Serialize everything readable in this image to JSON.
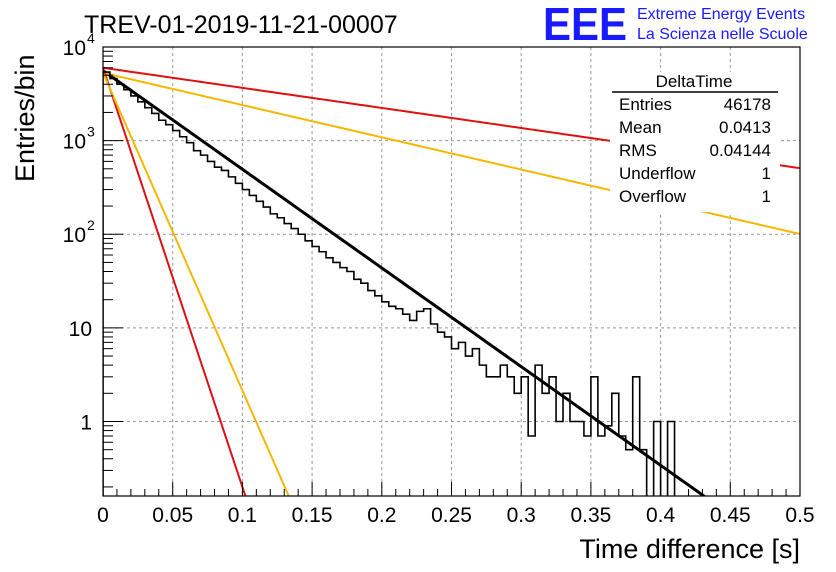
{
  "header": {
    "run_title": "TREV-01-2019-11-21-00007",
    "logo_text": "EEE",
    "logo_line1": "Extreme Energy Events",
    "logo_line2": "La Scienza nelle Scuole"
  },
  "stats": {
    "title": "DeltaTime",
    "rows": [
      {
        "label": "Entries",
        "value": "46178"
      },
      {
        "label": "Mean",
        "value": "0.0413"
      },
      {
        "label": "RMS",
        "value": "0.04144"
      },
      {
        "label": "Underflow",
        "value": "1"
      },
      {
        "label": "Overflow",
        "value": "1"
      }
    ]
  },
  "colors": {
    "histogram": "#000000",
    "fit": "#000000",
    "red_lines": "#dd1111",
    "orange_lines": "#f5b800",
    "grid": "#999999",
    "logo": "#1a1aff"
  },
  "chart_data": {
    "type": "line",
    "xlabel": "Time difference [s]",
    "ylabel": "Entries/bin",
    "xlim": [
      0,
      0.5
    ],
    "ylim": [
      0.16,
      10000
    ],
    "y_scale": "log",
    "grid": true,
    "x_ticks": [
      {
        "value": 0,
        "label": "0"
      },
      {
        "value": 0.05,
        "label": "0.05"
      },
      {
        "value": 0.1,
        "label": "0.1"
      },
      {
        "value": 0.15,
        "label": "0.15"
      },
      {
        "value": 0.2,
        "label": "0.2"
      },
      {
        "value": 0.25,
        "label": "0.25"
      },
      {
        "value": 0.3,
        "label": "0.3"
      },
      {
        "value": 0.35,
        "label": "0.35"
      },
      {
        "value": 0.4,
        "label": "0.4"
      },
      {
        "value": 0.45,
        "label": "0.45"
      },
      {
        "value": 0.5,
        "label": "0.5"
      }
    ],
    "y_ticks": [
      {
        "value": 1,
        "base": "1",
        "exp": ""
      },
      {
        "value": 10,
        "base": "10",
        "exp": ""
      },
      {
        "value": 100,
        "base": "10",
        "exp": "2"
      },
      {
        "value": 1000,
        "base": "10",
        "exp": "3"
      },
      {
        "value": 10000,
        "base": "10",
        "exp": "4"
      }
    ],
    "histogram": {
      "bin_width": 0.005,
      "x_start": 0.0,
      "counts": [
        5400,
        4600,
        4000,
        3500,
        3000,
        2600,
        2250,
        1950,
        1650,
        1480,
        1280,
        1100,
        950,
        780,
        700,
        600,
        520,
        480,
        410,
        350,
        300,
        260,
        225,
        195,
        165,
        150,
        130,
        115,
        100,
        85,
        74,
        65,
        56,
        50,
        44,
        40,
        33,
        30,
        25,
        22,
        19,
        17,
        16,
        14,
        12,
        15,
        16,
        11,
        9,
        8,
        6,
        7,
        5,
        6,
        4,
        3,
        3,
        4,
        3,
        2,
        3,
        0.7,
        4,
        2,
        3,
        1,
        2,
        1,
        1,
        0.7,
        3,
        0.7,
        0.9,
        2,
        0.7,
        0.5,
        3,
        0.5,
        0.1,
        1,
        0.1,
        1,
        0.1,
        0.1,
        0.1,
        0.1,
        0.1,
        0.1,
        0.1,
        0.1,
        0.1,
        0.1,
        0.1,
        0.1,
        0.1,
        0.1,
        0.1,
        0.1,
        0.1,
        0.1
      ]
    },
    "series": [
      {
        "color": "black",
        "y0": 5600,
        "tau": 0.0412,
        "x_end": 0.436
      },
      {
        "color": "red",
        "y0": 6000,
        "tau": 0.2025,
        "x_end": 0.5
      },
      {
        "color": "orange",
        "y0": 5300,
        "tau": 0.1261,
        "x_end": 0.5
      },
      {
        "color": "red",
        "y0": 6000,
        "tau": 0.0097,
        "x_end": 0.105
      },
      {
        "color": "orange",
        "y0": 5300,
        "tau": 0.0128,
        "x_end": 0.134
      }
    ]
  }
}
